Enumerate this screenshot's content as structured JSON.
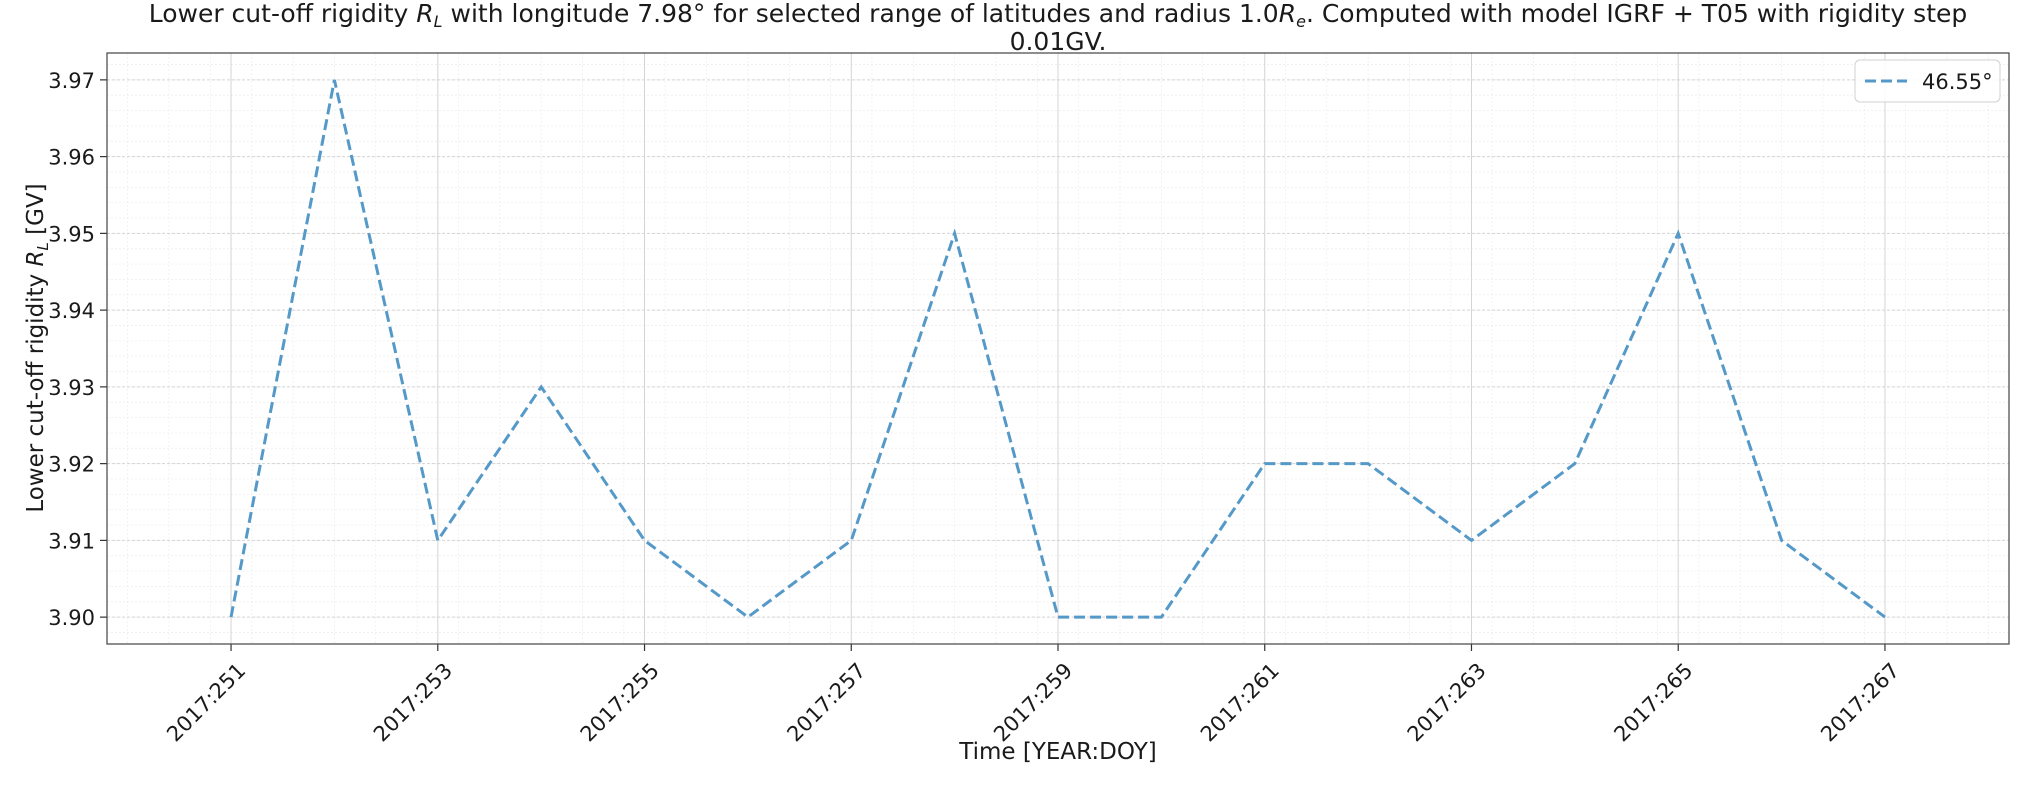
{
  "chart_data": {
    "type": "line",
    "title_line1_prefix": "Lower cut-off rigidity ",
    "title_var_R": "R",
    "title_var_L": "L",
    "title_line1_mid": " with longitude 7.98° for selected range of latitudes and radius 1.0",
    "title_var_Re_R": "R",
    "title_var_Re_e": "e",
    "title_line1_suffix": ". Computed with model IGRF + T05 with rigidity step",
    "title_line2": "0.01GV.",
    "xlabel": "Time [YEAR:DOY]",
    "ylabel_prefix": "Lower cut-off rigidity ",
    "ylabel_var_R": "R",
    "ylabel_var_L": "L",
    "ylabel_suffix": " [GV]",
    "x_tick_labels": [
      "2017:251",
      "2017:253",
      "2017:255",
      "2017:257",
      "2017:259",
      "2017:261",
      "2017:263",
      "2017:265",
      "2017:267"
    ],
    "x_tick_values": [
      251,
      253,
      255,
      257,
      259,
      261,
      263,
      265,
      267
    ],
    "y_tick_labels": [
      "3.90",
      "3.91",
      "3.92",
      "3.93",
      "3.94",
      "3.95",
      "3.96",
      "3.97"
    ],
    "y_tick_values": [
      3.9,
      3.91,
      3.92,
      3.93,
      3.94,
      3.95,
      3.96,
      3.97
    ],
    "xlim": [
      249.8,
      268.2
    ],
    "ylim": [
      3.8965,
      3.9735
    ],
    "grid": true,
    "minor_grid": true,
    "legend_position": "top-right",
    "series": [
      {
        "name": "46.55°",
        "color": "#5599c8",
        "style": "dashed",
        "x": [
          251,
          252,
          253,
          254,
          255,
          256,
          257,
          258,
          259,
          260,
          261,
          262,
          263,
          264,
          265,
          266,
          267
        ],
        "y": [
          3.9,
          3.97,
          3.91,
          3.93,
          3.91,
          3.9,
          3.91,
          3.95,
          3.9,
          3.9,
          3.92,
          3.92,
          3.91,
          3.92,
          3.95,
          3.91,
          3.9
        ]
      }
    ]
  }
}
